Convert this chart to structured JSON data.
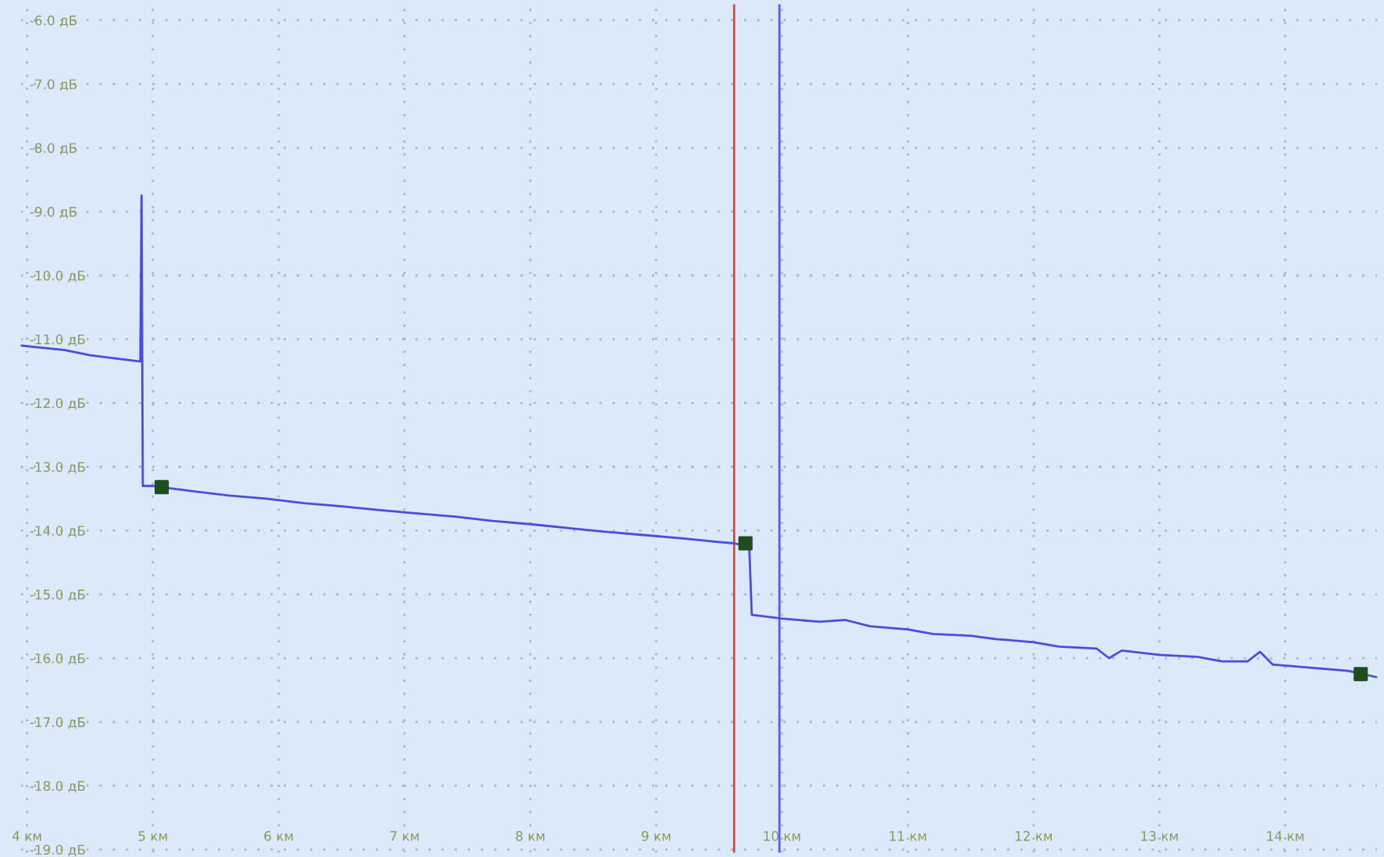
{
  "chart_data": {
    "type": "line",
    "xlim": [
      3.95,
      14.73
    ],
    "ylim": [
      -19.05,
      -5.75
    ],
    "xticks": [
      {
        "value": 4,
        "label": "4 км"
      },
      {
        "value": 5,
        "label": "5 км"
      },
      {
        "value": 6,
        "label": "6 км"
      },
      {
        "value": 7,
        "label": "7 км"
      },
      {
        "value": 8,
        "label": "8 км"
      },
      {
        "value": 9,
        "label": "9 км"
      },
      {
        "value": 10,
        "label": "10 км"
      },
      {
        "value": 11,
        "label": "11 км"
      },
      {
        "value": 12,
        "label": "12 км"
      },
      {
        "value": 13,
        "label": "13 км"
      },
      {
        "value": 14,
        "label": "14 км"
      }
    ],
    "yticks": [
      {
        "value": -6,
        "label": "-6.0 дБ"
      },
      {
        "value": -7,
        "label": "-7.0 дБ"
      },
      {
        "value": -8,
        "label": "-8.0 дБ"
      },
      {
        "value": -9,
        "label": "-9.0 дБ"
      },
      {
        "value": -10,
        "label": "-10.0 дБ"
      },
      {
        "value": -11,
        "label": "-11.0 дБ"
      },
      {
        "value": -12,
        "label": "-12.0 дБ"
      },
      {
        "value": -13,
        "label": "-13.0 дБ"
      },
      {
        "value": -14,
        "label": "-14.0 дБ"
      },
      {
        "value": -15,
        "label": "-15.0 дБ"
      },
      {
        "value": -16,
        "label": "-16.0 дБ"
      },
      {
        "value": -17,
        "label": "-17.0 дБ"
      },
      {
        "value": -18,
        "label": "-18.0 дБ"
      },
      {
        "value": -19,
        "label": "-19.0 дБ"
      }
    ],
    "grid": true,
    "series": [
      {
        "color": "#4a4ede",
        "x": [
          3.95,
          4.3,
          4.5,
          4.7,
          4.9,
          4.91,
          4.92,
          5.0,
          5.3,
          5.6,
          5.9,
          6.2,
          6.5,
          6.8,
          7.1,
          7.4,
          7.7,
          8.0,
          8.3,
          8.6,
          8.9,
          9.2,
          9.5,
          9.62,
          9.74,
          9.76,
          10.0,
          10.3,
          10.5,
          10.7,
          11.0,
          11.2,
          11.5,
          11.7,
          12.0,
          12.2,
          12.5,
          12.6,
          12.7,
          13.0,
          13.3,
          13.5,
          13.7,
          13.8,
          13.9,
          14.2,
          14.5,
          14.73
        ],
        "values": [
          -11.1,
          -11.17,
          -11.25,
          -11.3,
          -11.35,
          -8.75,
          -13.3,
          -13.3,
          -13.38,
          -13.45,
          -13.5,
          -13.57,
          -13.62,
          -13.68,
          -13.73,
          -13.78,
          -13.85,
          -13.9,
          -13.96,
          -14.02,
          -14.07,
          -14.12,
          -14.18,
          -14.2,
          -14.25,
          -15.32,
          -15.38,
          -15.43,
          -15.4,
          -15.5,
          -15.55,
          -15.62,
          -15.65,
          -15.7,
          -15.75,
          -15.82,
          -15.85,
          -16.0,
          -15.88,
          -15.95,
          -15.98,
          -16.05,
          -16.05,
          -15.9,
          -16.1,
          -16.15,
          -16.2,
          -16.3
        ]
      },
      {
        "type": "scatter",
        "color": "#1e4d1e",
        "marker": "square",
        "x": [
          5.07,
          9.71,
          14.6
        ],
        "values": [
          -13.32,
          -14.2,
          -16.25
        ]
      }
    ],
    "ref_lines": [
      {
        "axis": "x",
        "value": 9.62,
        "color": "#e8453c"
      },
      {
        "axis": "x",
        "value": 9.98,
        "color": "#5a5ee0"
      }
    ]
  }
}
